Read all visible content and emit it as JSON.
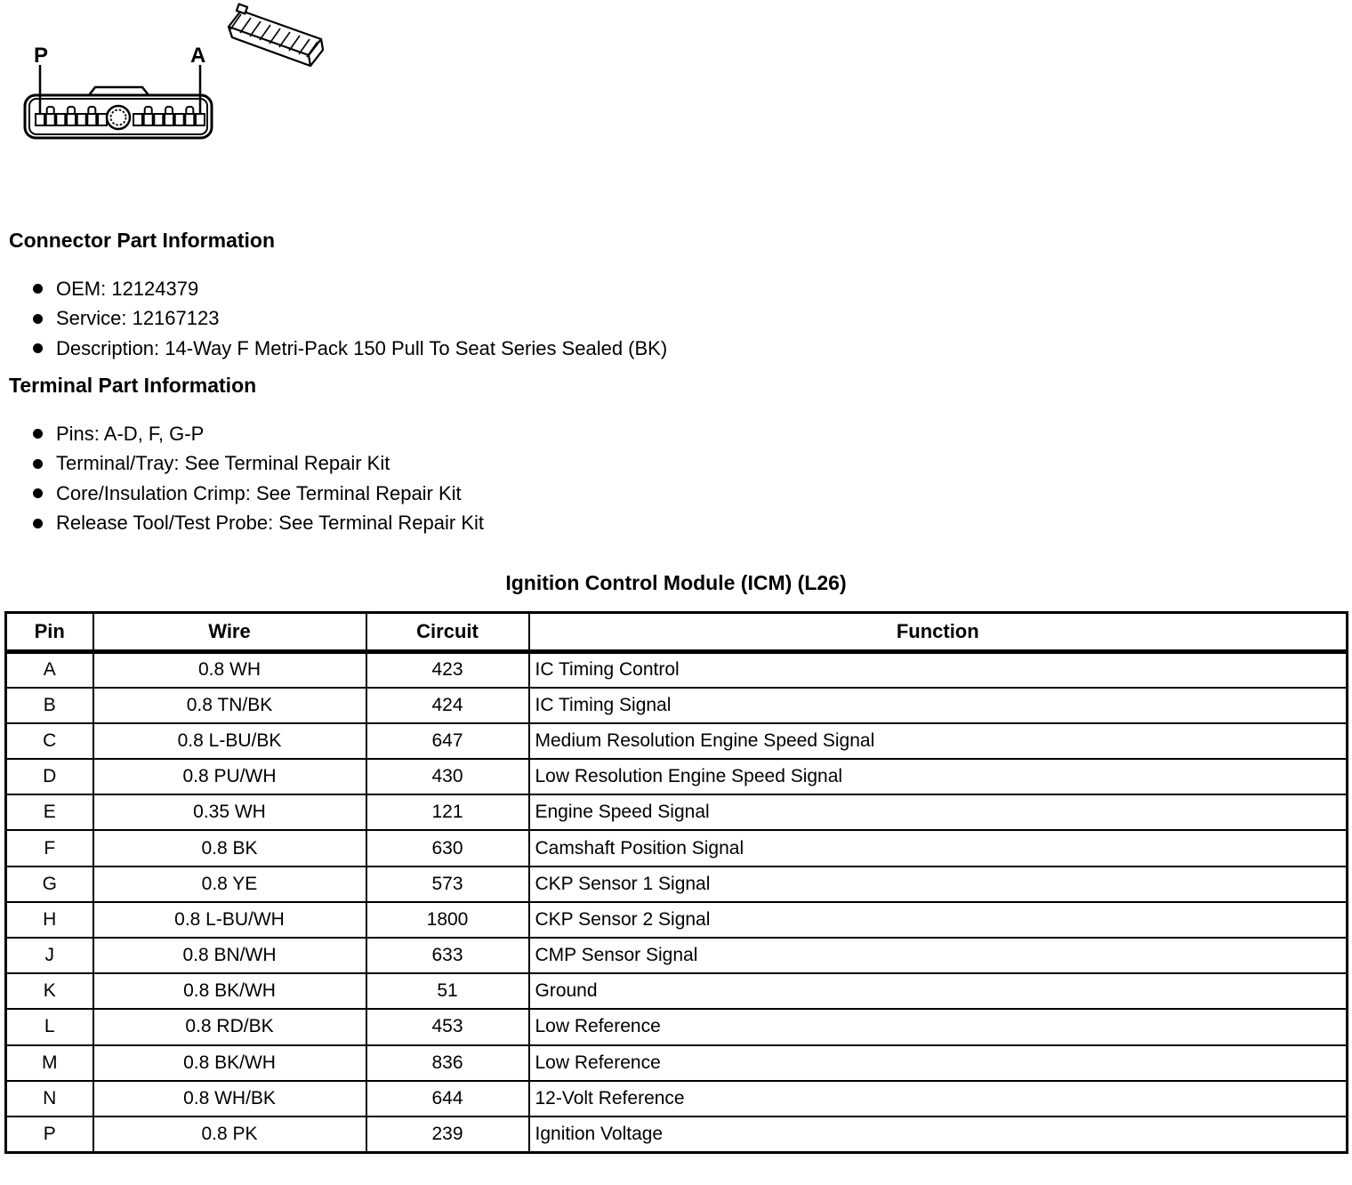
{
  "colors": {
    "text": "#000000",
    "background": "#ffffff",
    "border": "#000000"
  },
  "diagram": {
    "label_p": "P",
    "label_a": "A",
    "face_view": "14-way-connector-face-view",
    "iso_view": "connector-isometric-view"
  },
  "sections": [
    {
      "heading": "Connector Part Information",
      "bullets": [
        "OEM: 12124379",
        "Service: 12167123",
        "Description: 14-Way F Metri-Pack 150 Pull To Seat Series Sealed (BK)"
      ]
    },
    {
      "heading": "Terminal Part Information",
      "bullets": [
        "Pins: A-D, F, G-P",
        "Terminal/Tray: See Terminal Repair Kit",
        "Core/Insulation Crimp: See Terminal Repair Kit",
        "Release Tool/Test Probe: See Terminal Repair Kit"
      ]
    }
  ],
  "table": {
    "title": "Ignition Control Module (ICM) (L26)",
    "columns": [
      "Pin",
      "Wire",
      "Circuit",
      "Function"
    ],
    "rows": [
      [
        "A",
        "0.8 WH",
        "423",
        "IC Timing Control"
      ],
      [
        "B",
        "0.8 TN/BK",
        "424",
        "IC Timing Signal"
      ],
      [
        "C",
        "0.8 L-BU/BK",
        "647",
        "Medium Resolution Engine Speed Signal"
      ],
      [
        "D",
        "0.8 PU/WH",
        "430",
        "Low Resolution Engine Speed Signal"
      ],
      [
        "E",
        "0.35 WH",
        "121",
        "Engine Speed Signal"
      ],
      [
        "F",
        "0.8 BK",
        "630",
        "Camshaft Position Signal"
      ],
      [
        "G",
        "0.8 YE",
        "573",
        "CKP Sensor 1 Signal"
      ],
      [
        "H",
        "0.8 L-BU/WH",
        "1800",
        "CKP Sensor 2 Signal"
      ],
      [
        "J",
        "0.8 BN/WH",
        "633",
        "CMP Sensor Signal"
      ],
      [
        "K",
        "0.8 BK/WH",
        "51",
        "Ground"
      ],
      [
        "L",
        "0.8 RD/BK",
        "453",
        "Low Reference"
      ],
      [
        "M",
        "0.8 BK/WH",
        "836",
        "Low Reference"
      ],
      [
        "N",
        "0.8 WH/BK",
        "644",
        "12-Volt Reference"
      ],
      [
        "P",
        "0.8 PK",
        "239",
        "Ignition Voltage"
      ]
    ]
  }
}
